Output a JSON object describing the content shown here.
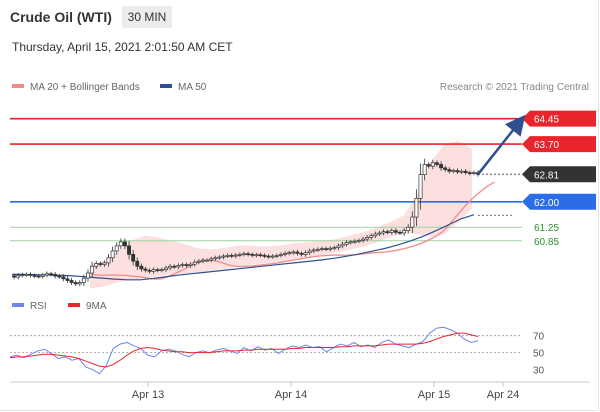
{
  "header": {
    "title": "Crude Oil (WTI)",
    "timeframe_button": "30 MIN",
    "datetime": "Thursday, April 15, 2021 2:01:50 AM CET"
  },
  "legend": [
    {
      "label": "MA 20 + Bollinger Bands",
      "color": "#f08c8c"
    },
    {
      "label": "MA 50",
      "color": "#2f4f8f"
    }
  ],
  "credit": "Research © 2021 Trading Central",
  "rsi_legend": [
    {
      "label": "RSI",
      "color": "#6f86e6"
    },
    {
      "label": "9MA",
      "color": "#e8242c"
    }
  ],
  "chart_data": [
    {
      "type": "candlestick",
      "title": "Crude Oil (WTI)",
      "timeframe": "30 MIN",
      "x_tick_labels": [
        "Apr 13",
        "Apr 14",
        "Apr 15",
        "Apr 24"
      ],
      "ylim": [
        59.4,
        65.0
      ],
      "price_series": [
        59.82,
        59.78,
        59.83,
        59.85,
        59.86,
        59.83,
        59.81,
        59.8,
        59.84,
        59.88,
        59.86,
        59.81,
        59.79,
        59.73,
        59.68,
        59.62,
        59.58,
        59.62,
        59.75,
        59.9,
        60.1,
        60.18,
        60.15,
        60.2,
        60.35,
        60.55,
        60.7,
        60.82,
        60.7,
        60.45,
        60.25,
        60.1,
        60.02,
        59.98,
        59.95,
        60.0,
        59.98,
        60.0,
        60.05,
        60.1,
        60.08,
        60.12,
        60.15,
        60.12,
        60.16,
        60.22,
        60.25,
        60.28,
        60.28,
        60.32,
        60.35,
        60.37,
        60.4,
        60.42,
        60.4,
        60.43,
        60.45,
        60.47,
        60.45,
        60.42,
        60.44,
        60.42,
        60.4,
        60.38,
        60.4,
        60.42,
        60.45,
        60.48,
        60.5,
        60.52,
        60.48,
        60.45,
        60.5,
        60.55,
        60.58,
        60.6,
        60.62,
        60.6,
        60.63,
        60.65,
        60.7,
        60.75,
        60.8,
        60.82,
        60.84,
        60.86,
        60.9,
        60.95,
        61.0,
        61.05,
        61.08,
        61.12,
        61.1,
        61.15,
        61.1,
        61.08,
        61.15,
        61.25,
        61.55,
        62.1,
        62.8,
        63.1,
        63.05,
        63.15,
        63.1,
        63.0,
        62.95,
        62.9,
        62.92,
        62.88,
        62.9,
        62.86,
        62.84,
        62.86,
        62.81
      ],
      "ma20": [
        59.85,
        59.84,
        59.83,
        59.84,
        59.84,
        59.83,
        59.83,
        59.81,
        59.79,
        59.77,
        59.74,
        59.72,
        59.73,
        59.78,
        59.85,
        59.93,
        60.01,
        60.1,
        60.19,
        60.25,
        60.28,
        60.27,
        60.24,
        60.18,
        60.13,
        60.1,
        60.09,
        60.1,
        60.11,
        60.13,
        60.15,
        60.17,
        60.19,
        60.22,
        60.25,
        60.28,
        60.31,
        60.34,
        60.37,
        60.39,
        60.41,
        60.42,
        60.43,
        60.43,
        60.42,
        60.43,
        60.44,
        60.46,
        60.48,
        60.5,
        60.51,
        60.52,
        60.54,
        60.57,
        60.61,
        60.65,
        60.7,
        60.76,
        60.83,
        60.91,
        61.0,
        61.12,
        61.3,
        61.5,
        61.7,
        61.9,
        62.07,
        62.22,
        62.36,
        62.48,
        62.58
      ],
      "ma20_x_range": [
        20,
        118
      ],
      "bollinger_upper": [
        60.15,
        60.25,
        60.5,
        60.85,
        61.0,
        60.95,
        60.85,
        60.75,
        60.62,
        60.6,
        60.65,
        60.72,
        60.7,
        60.68,
        60.72,
        60.78,
        60.8,
        60.85,
        60.9,
        61.0,
        61.1,
        61.25,
        61.4,
        61.6,
        62.2,
        63.2,
        63.7,
        63.8,
        63.55
      ],
      "bollinger_lower": [
        59.45,
        59.5,
        59.62,
        59.7,
        59.75,
        59.8,
        59.86,
        59.88,
        59.92,
        59.98,
        60.03,
        60.1,
        60.15,
        60.2,
        60.24,
        60.3,
        60.36,
        60.43,
        60.5,
        60.58,
        60.68,
        60.8,
        60.95,
        61.1,
        61.05,
        60.95,
        61.05,
        61.4,
        61.8
      ],
      "ma50": [
        59.86,
        59.86,
        59.85,
        59.84,
        59.83,
        59.81,
        59.78,
        59.75,
        59.72,
        59.7,
        59.7,
        59.74,
        59.79,
        59.84,
        59.88,
        59.92,
        59.96,
        60.0,
        60.04,
        60.08,
        60.12,
        60.16,
        60.2,
        60.24,
        60.28,
        60.33,
        60.39,
        60.46,
        60.54,
        60.62,
        60.72,
        60.84,
        60.98,
        61.14,
        61.32,
        61.5,
        61.62
      ],
      "levels": [
        {
          "label": "64.45",
          "value": 64.45,
          "color": "#e8242c"
        },
        {
          "label": "63.70",
          "value": 63.7,
          "color": "#e8242c"
        },
        {
          "label": "62.81",
          "value": 62.81,
          "color": "#333333"
        },
        {
          "label": "62.00",
          "value": 62.0,
          "color": "#2b6de8"
        },
        {
          "label": "61.25",
          "value": 61.25,
          "color": "#2f8f2f"
        },
        {
          "label": "60.85",
          "value": 60.85,
          "color": "#2f8f2f"
        }
      ],
      "arrow": {
        "from_value": 62.81,
        "to_value": 64.45
      }
    },
    {
      "type": "line",
      "title": "RSI",
      "ylim": [
        20,
        85
      ],
      "y_tick_labels": [
        "70",
        "50",
        "30"
      ],
      "y_ticks": [
        70,
        50,
        30
      ],
      "series": [
        {
          "name": "RSI",
          "color": "#6f86e6",
          "values": [
            45,
            47,
            44,
            48,
            52,
            54,
            49,
            43,
            45,
            41,
            43,
            33,
            30,
            25,
            35,
            55,
            60,
            62,
            58,
            55,
            47,
            45,
            52,
            54,
            52,
            48,
            45,
            50,
            52,
            50,
            53,
            55,
            52,
            49,
            56,
            52,
            57,
            53,
            55,
            49,
            54,
            58,
            56,
            59,
            56,
            57,
            51,
            56,
            60,
            58,
            62,
            57,
            59,
            56,
            62,
            65,
            60,
            58,
            56,
            60,
            63,
            73,
            79,
            80,
            77,
            73,
            66,
            62,
            64
          ]
        },
        {
          "name": "9MA",
          "color": "#e8242c",
          "values": [
            44,
            45,
            45,
            46,
            47,
            48,
            48,
            47,
            46,
            45,
            43,
            40,
            37,
            34,
            33,
            36,
            41,
            47,
            52,
            55,
            56,
            55,
            53,
            52,
            51,
            51,
            50,
            50,
            50,
            50,
            51,
            52,
            52,
            52,
            53,
            53,
            54,
            54,
            54,
            54,
            54,
            55,
            55,
            56,
            56,
            56,
            56,
            56,
            57,
            57,
            58,
            58,
            58,
            58,
            59,
            60,
            60,
            60,
            60,
            60,
            61,
            63,
            66,
            69,
            71,
            73,
            73,
            71,
            69
          ]
        }
      ]
    }
  ]
}
